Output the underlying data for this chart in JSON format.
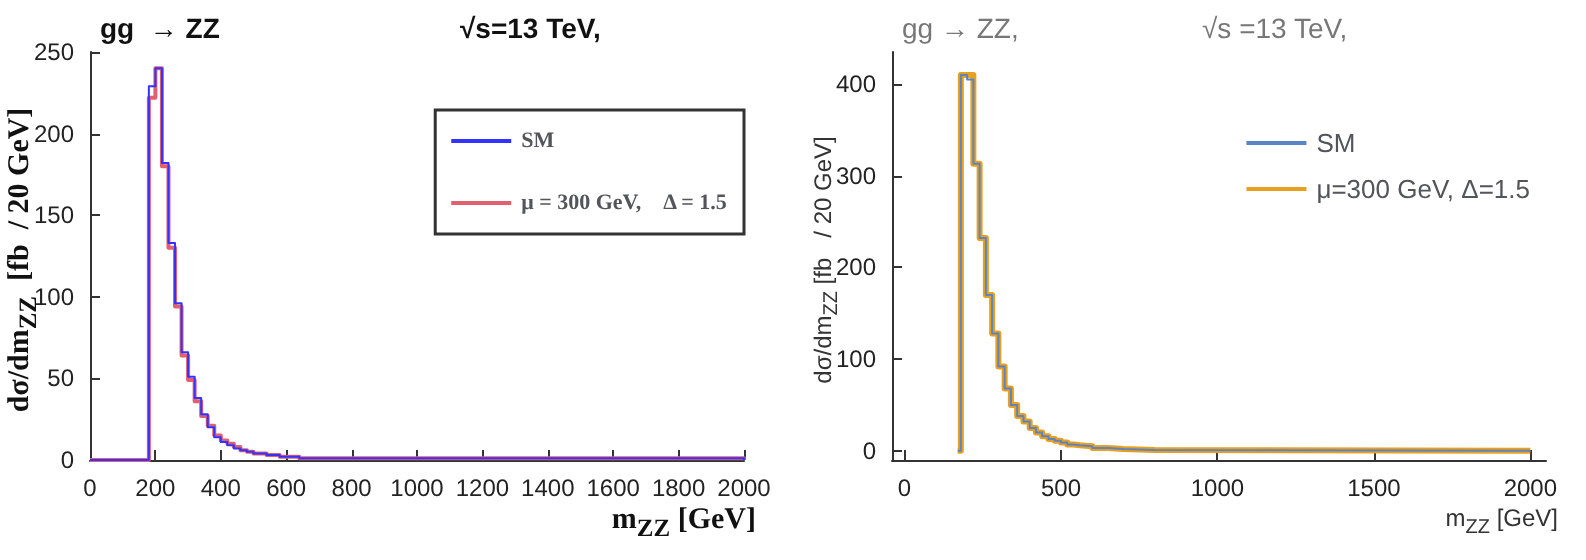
{
  "chart_data": [
    {
      "type": "step",
      "title": "gg  → ZZ",
      "subtitle": "√s=13 TeV,",
      "xlabel": "m$_{ZZ}$ [GeV]",
      "ylabel": "dσ/dm$_{ZZ}$  [fb  / 20 GeV]",
      "xlim": [
        0,
        2000
      ],
      "ylim": [
        0,
        250
      ],
      "xticks": [
        0,
        200,
        400,
        600,
        800,
        1000,
        1200,
        1400,
        1600,
        1800,
        2000
      ],
      "yticks": [
        0,
        50,
        100,
        150,
        200,
        250
      ],
      "legend": "top right",
      "marker": "none",
      "x": [
        0,
        180,
        200,
        220,
        240,
        260,
        280,
        300,
        320,
        340,
        360,
        380,
        400,
        420,
        440,
        460,
        480,
        500,
        520,
        540,
        560,
        580,
        600,
        640,
        700,
        2000
      ],
      "series": [
        {
          "name": "SM",
          "color": "#3333ff",
          "values": [
            0,
            229,
            240,
            182,
            133,
            96,
            66,
            51,
            38,
            28,
            20,
            14,
            11,
            9,
            7,
            6,
            5,
            4,
            4,
            3,
            3,
            2,
            2,
            1,
            1,
            0
          ]
        },
        {
          "name": "μ = 300 GeV,    Δ = 1.5",
          "color": "#e06070",
          "values": [
            0,
            222,
            240,
            180,
            130,
            94,
            64,
            49,
            36,
            27,
            21,
            15,
            12,
            10,
            8,
            6,
            5,
            4,
            4,
            3,
            3,
            2,
            2,
            1,
            1,
            0
          ]
        }
      ]
    },
    {
      "type": "step",
      "title": "gg → ZZ,",
      "subtitle": "√s =13 TeV,",
      "xlabel": "m$_{ZZ}$ [GeV]",
      "ylabel": "dσ/dm$_{ZZ}$ [fb   / 20 GeV]",
      "xlim": [
        -40,
        2050
      ],
      "ylim": [
        -10,
        435
      ],
      "xticks": [
        0,
        500,
        1000,
        1500,
        2000
      ],
      "yticks": [
        0,
        100,
        200,
        300,
        400
      ],
      "legend": "top right",
      "marker": "none",
      "x": [
        170,
        180,
        200,
        220,
        240,
        260,
        280,
        300,
        320,
        340,
        360,
        380,
        400,
        420,
        440,
        460,
        480,
        500,
        520,
        540,
        560,
        600,
        650,
        700,
        800,
        2000
      ],
      "series": [
        {
          "name": "SM",
          "color": "#5b84c4",
          "values": [
            0,
            410,
            405,
            313,
            232,
            170,
            128,
            92,
            68,
            50,
            38,
            32,
            25,
            20,
            16,
            13,
            11,
            9,
            7,
            6,
            5,
            3,
            2,
            1,
            0,
            0
          ]
        },
        {
          "name": "μ=300 GeV, Δ=1.5",
          "color": "#e8a020",
          "values": [
            0,
            410,
            410,
            313,
            232,
            170,
            128,
            92,
            68,
            50,
            38,
            32,
            25,
            20,
            16,
            13,
            11,
            9,
            7,
            6,
            5,
            3,
            2,
            1,
            0,
            0
          ]
        }
      ]
    }
  ]
}
